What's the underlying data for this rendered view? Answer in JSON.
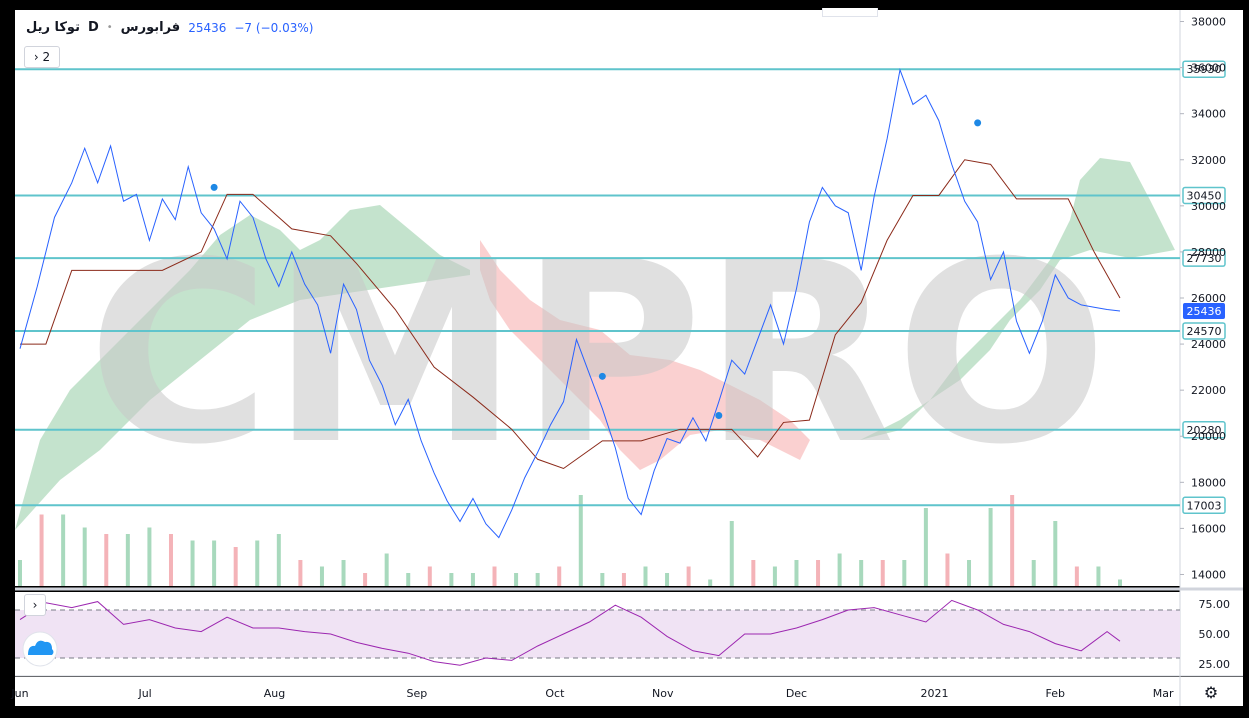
{
  "legend": {
    "symbol": "توکا ریل",
    "interval": "D",
    "exchange": "فرابورس",
    "price": "25436",
    "change": "−7 (−0.03%)"
  },
  "buttons": {
    "indicators_count": "2",
    "collapse_icon": "chevron-right-icon",
    "settings_icon": "gear-icon"
  },
  "colors": {
    "price_line": "#2962ff",
    "avg_line": "#8b2a1a",
    "hline": "#5fc4cc",
    "cloud_green": "#b5dcc0",
    "cloud_red": "#f9c4c4",
    "vol_up": "#a8d9bd",
    "vol_down": "#f4b3b8",
    "rsi_line": "#9c27b0",
    "rsi_band": "#f0e3f4",
    "watermark": "#c8c8c8"
  },
  "watermark": "CMPRO",
  "chart_data": [
    {
      "type": "line",
      "title": "",
      "x_axis_labels": [
        "Jun",
        "Jul",
        "Aug",
        "Sep",
        "Oct",
        "Nov",
        "Dec",
        "2021",
        "Feb",
        "Mar"
      ],
      "y_axis_ticks": [
        14000,
        16000,
        18000,
        20000,
        22000,
        24000,
        26000,
        28000,
        30000,
        32000,
        34000,
        36000,
        38000
      ],
      "ylim": [
        13500,
        38500
      ],
      "last_price": 25436,
      "horizontal_levels": [
        35930,
        30450,
        27730,
        24570,
        20280,
        17003
      ],
      "series": [
        {
          "name": "",
          "role": "price",
          "x": [
            0,
            4,
            8,
            12,
            15,
            18,
            21,
            24,
            27,
            30,
            33,
            36,
            39,
            42,
            45,
            48,
            51,
            54,
            57,
            60,
            63,
            66,
            69,
            72,
            75,
            78,
            81,
            84,
            87,
            90,
            93,
            96,
            99,
            102,
            105,
            108,
            111,
            114,
            117,
            120,
            123,
            126,
            129,
            132,
            135,
            138,
            141,
            144,
            147,
            150,
            153,
            156,
            159,
            162,
            165,
            168,
            171,
            174,
            177,
            180,
            183,
            186,
            189,
            192,
            195,
            198,
            201,
            204,
            207,
            210,
            213,
            216,
            219,
            222,
            225,
            228,
            231,
            234,
            237,
            240,
            243,
            246,
            249,
            252,
            255
          ],
          "y": [
            23800,
            26500,
            29500,
            31000,
            32500,
            31000,
            32600,
            30200,
            30500,
            28500,
            30300,
            29400,
            31700,
            29700,
            29000,
            27700,
            30200,
            29500,
            27700,
            26500,
            28000,
            26600,
            25700,
            23600,
            26600,
            25500,
            23300,
            22200,
            20500,
            21600,
            19800,
            18400,
            17200,
            16300,
            17300,
            16200,
            15600,
            16800,
            18200,
            19300,
            20500,
            21500,
            24200,
            22700,
            21200,
            19500,
            17300,
            16600,
            18500,
            19900,
            19700,
            20800,
            19800,
            21500,
            23300,
            22700,
            24200,
            25700,
            24000,
            26400,
            29300,
            30800,
            30000,
            29700,
            27200,
            30400,
            32900,
            35900,
            34400,
            34800,
            33700,
            31800,
            30200,
            29300,
            26800,
            28000,
            25000,
            23600,
            25000,
            27000,
            26000,
            25700,
            25600,
            25500,
            25436
          ]
        },
        {
          "name": "",
          "role": "average",
          "x": [
            0,
            6,
            12,
            18,
            24,
            33,
            42,
            48,
            54,
            63,
            72,
            78,
            87,
            96,
            105,
            114,
            120,
            126,
            135,
            144,
            153,
            159,
            165,
            171,
            177,
            183,
            189,
            195,
            201,
            207,
            213,
            219,
            225,
            231,
            237,
            243,
            249,
            255
          ],
          "y": [
            24000,
            24000,
            27200,
            27200,
            27200,
            27200,
            28000,
            30500,
            30500,
            29000,
            28700,
            27500,
            25500,
            23000,
            21700,
            20300,
            19000,
            18600,
            19800,
            19800,
            20300,
            20300,
            20300,
            19100,
            20600,
            20700,
            24400,
            25800,
            28500,
            30450,
            30450,
            32000,
            31800,
            30300,
            30300,
            30300,
            28000,
            26000
          ]
        },
        {
          "name": "",
          "role": "rsi",
          "ylim": [
            15,
            85
          ],
          "y_axis_ticks": [
            25,
            50,
            75
          ],
          "band": [
            30,
            70
          ],
          "x": [
            0,
            6,
            12,
            18,
            24,
            30,
            36,
            42,
            48,
            54,
            60,
            66,
            72,
            78,
            84,
            90,
            96,
            102,
            108,
            114,
            120,
            126,
            132,
            138,
            144,
            150,
            156,
            162,
            168,
            174,
            180,
            186,
            192,
            198,
            204,
            210,
            216,
            222,
            228,
            234,
            240,
            246,
            252,
            255
          ],
          "y": [
            62,
            76,
            72,
            77,
            58,
            62,
            55,
            52,
            64,
            55,
            55,
            52,
            50,
            43,
            38,
            34,
            27,
            24,
            30,
            28,
            40,
            50,
            60,
            74,
            64,
            48,
            36,
            32,
            50,
            50,
            55,
            62,
            70,
            72,
            66,
            60,
            78,
            70,
            58,
            52,
            42,
            36,
            52,
            44
          ]
        },
        {
          "name": "",
          "role": "volume",
          "x": [
            0,
            5,
            10,
            15,
            20,
            25,
            30,
            35,
            40,
            45,
            50,
            55,
            60,
            65,
            70,
            75,
            80,
            85,
            90,
            95,
            100,
            105,
            110,
            115,
            120,
            125,
            130,
            135,
            140,
            145,
            150,
            155,
            160,
            165,
            170,
            175,
            180,
            185,
            190,
            195,
            200,
            205,
            210,
            215,
            220,
            225,
            230,
            235,
            240,
            245,
            250,
            255
          ],
          "y": [
            20,
            55,
            55,
            45,
            40,
            40,
            45,
            40,
            35,
            35,
            30,
            35,
            40,
            20,
            15,
            20,
            10,
            25,
            10,
            15,
            10,
            10,
            15,
            10,
            10,
            15,
            70,
            10,
            10,
            15,
            10,
            15,
            5,
            50,
            20,
            15,
            20,
            20,
            25,
            20,
            20,
            20,
            60,
            25,
            20,
            60,
            70,
            20,
            50,
            15,
            15,
            5
          ]
        }
      ]
    }
  ]
}
